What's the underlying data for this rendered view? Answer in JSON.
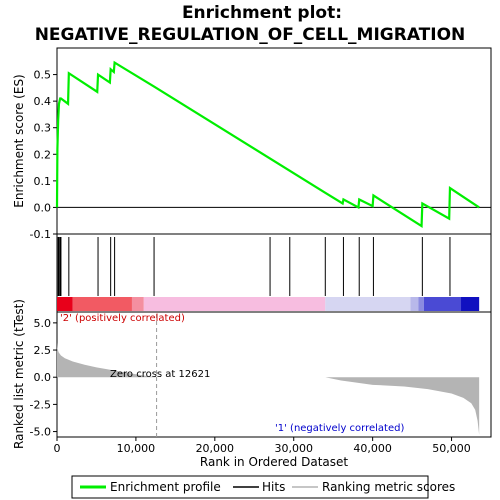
{
  "chart_data": {
    "type": "line",
    "title_line1": "Enrichment plot:",
    "title_line2": "NEGATIVE_REGULATION_OF_CELL_MIGRATION",
    "top_panel": {
      "ylabel": "Enrichment score (ES)",
      "ylim": [
        -0.1,
        0.6
      ],
      "yticks": [
        -0.1,
        0.0,
        0.1,
        0.2,
        0.3,
        0.4,
        0.5
      ],
      "ytick_labels": [
        "-0.1",
        "0.0",
        "0.1",
        "0.2",
        "0.3",
        "0.4",
        "0.5"
      ],
      "series_name": "Enrichment profile",
      "color": "#00ee00",
      "x": [
        0,
        50,
        150,
        250,
        400,
        500,
        1400,
        1500,
        5100,
        5200,
        6700,
        6800,
        7200,
        7300,
        12300,
        34000,
        36200,
        36300,
        38200,
        38300,
        40000,
        40100,
        46200,
        46300,
        49700,
        49800,
        53500
      ],
      "y": [
        0.0,
        0.22,
        0.33,
        0.39,
        0.41,
        0.41,
        0.39,
        0.505,
        0.435,
        0.5,
        0.47,
        0.52,
        0.51,
        0.545,
        0.455,
        0.055,
        0.015,
        0.03,
        0.0,
        0.03,
        0.005,
        0.045,
        -0.07,
        0.015,
        -0.042,
        0.073,
        0.0
      ]
    },
    "hits": [
      150,
      250,
      400,
      500,
      1500,
      5200,
      6800,
      7300,
      12300,
      27000,
      29500,
      34000,
      36300,
      38300,
      40100,
      46300,
      49800
    ],
    "bottom_panel": {
      "ylabel": "Ranked list metric (tTest)",
      "ylim": [
        -5.5,
        6.0
      ],
      "yticks": [
        -5.0,
        -2.5,
        0.0,
        2.5,
        5.0
      ],
      "ytick_labels": [
        "-5.0",
        "-2.5",
        "0.0",
        "2.5",
        "5.0"
      ],
      "metric_x": [
        0,
        50,
        200,
        500,
        1000,
        2000,
        3500,
        5000,
        7000,
        9000,
        11000,
        12621,
        20000,
        34000,
        36000,
        40000,
        44000,
        47000,
        50000,
        51500,
        52500,
        53000,
        53300,
        53500
      ],
      "metric_y": [
        3.2,
        2.7,
        2.3,
        2.0,
        1.75,
        1.45,
        1.15,
        0.9,
        0.65,
        0.4,
        0.15,
        0.0,
        0.0,
        0.0,
        -0.3,
        -0.7,
        -0.85,
        -1.1,
        -1.5,
        -1.9,
        -2.4,
        -3.0,
        -4.0,
        -5.3
      ],
      "metric_color": "#b4b4b4",
      "pos_label": "'2' (positively correlated)",
      "neg_label": "'1' (negatively correlated)",
      "zero_cross_label": "Zero cross at 12621",
      "zero_cross": 12621
    },
    "xlabel": "Rank in Ordered Dataset",
    "xlim": [
      0,
      55000
    ],
    "xticks": [
      0,
      10000,
      20000,
      30000,
      40000,
      50000
    ],
    "xtick_labels": [
      "0",
      "10,000",
      "20,000",
      "30,000",
      "40,000",
      "50,000"
    ],
    "colorbar": [
      {
        "from": 0,
        "to": 2000,
        "color": "#e8001a"
      },
      {
        "from": 2000,
        "to": 9500,
        "color": "#f25a63"
      },
      {
        "from": 9500,
        "to": 11000,
        "color": "#f48fa0"
      },
      {
        "from": 11000,
        "to": 34000,
        "color": "#f7bde0"
      },
      {
        "from": 34000,
        "to": 44800,
        "color": "#d6d6f2"
      },
      {
        "from": 44800,
        "to": 45800,
        "color": "#b8b8ea"
      },
      {
        "from": 45800,
        "to": 46500,
        "color": "#8b8be0"
      },
      {
        "from": 46500,
        "to": 51200,
        "color": "#4a4ad4"
      },
      {
        "from": 51200,
        "to": 53500,
        "color": "#1010c0"
      }
    ],
    "legend": [
      {
        "name": "Enrichment profile",
        "color": "#00ee00"
      },
      {
        "name": "Hits",
        "color": "#000000"
      },
      {
        "name": "Ranking metric scores",
        "color": "#b4b4b4"
      }
    ]
  }
}
